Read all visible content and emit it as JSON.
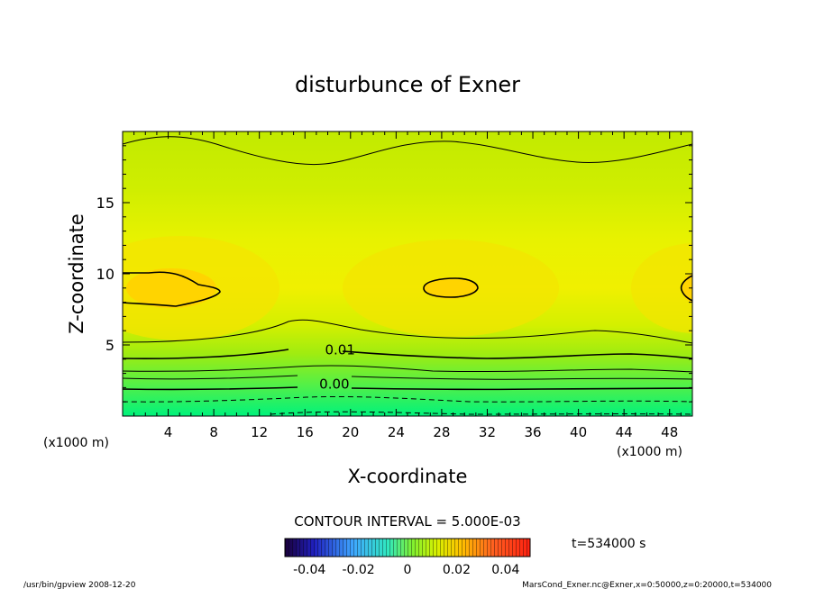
{
  "chart_data": {
    "type": "heatmap",
    "title": "disturbunce of Exner",
    "xlabel": "X-coordinate",
    "ylabel": "Z-coordinate",
    "x_unit_label": "(x1000 m)",
    "x_unit_label_right": "(x1000 m)",
    "xlim": [
      0,
      50
    ],
    "ylim": [
      0,
      20
    ],
    "x_ticks": [
      "4",
      "8",
      "12",
      "16",
      "20",
      "24",
      "28",
      "32",
      "36",
      "40",
      "44",
      "48"
    ],
    "y_ticks": [
      "5",
      "10",
      "15"
    ],
    "contour_labels": [
      {
        "text": "0.01",
        "x": 17.5,
        "y": 4.7
      },
      {
        "text": "0.00",
        "x": 17.0,
        "y": 2.3
      }
    ],
    "contour_interval_text": "CONTOUR INTERVAL = 5.000E-03",
    "colorbar_ticks": [
      "-0.04",
      "-0.02",
      "0",
      "0.02",
      "0.04"
    ],
    "colorbar_range": [
      -0.05,
      0.05
    ],
    "colors": {
      "low": "#00ff88",
      "mid": "#b8f000",
      "high": "#ffd500"
    }
  },
  "footer": {
    "time_label": "t=534000 s",
    "left_note": "/usr/bin/gpview  2008-12-20",
    "right_note": "MarsCond_Exner.nc@Exner,x=0:50000,z=0:20000,t=534000"
  }
}
